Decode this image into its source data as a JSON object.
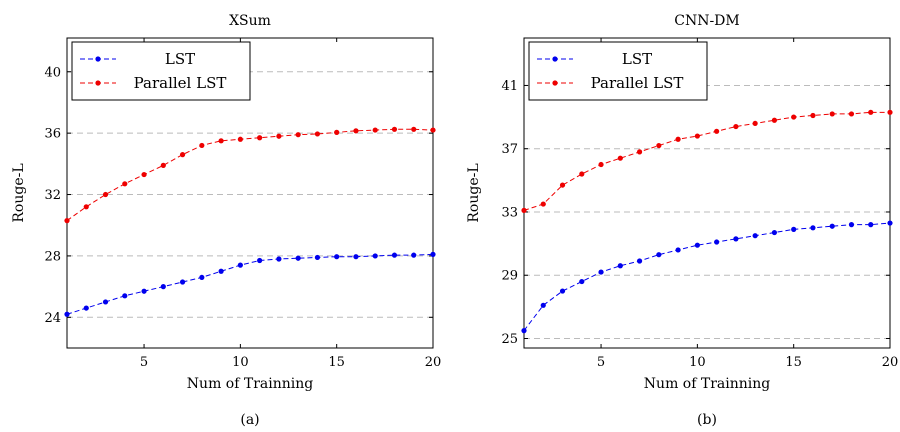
{
  "chart_data": [
    {
      "type": "line",
      "title": "XSum",
      "xlabel": "Num of Trainning",
      "ylabel": "Rouge-L",
      "caption": "(a)",
      "xlim": [
        1,
        20
      ],
      "ylim": [
        22,
        42.2
      ],
      "xticks": [
        5,
        10,
        15,
        20
      ],
      "yticks": [
        24,
        28,
        32,
        36,
        40
      ],
      "grid": "horizontal dashed",
      "legend_position": "top-left",
      "x": [
        1,
        2,
        3,
        4,
        5,
        6,
        7,
        8,
        9,
        10,
        11,
        12,
        13,
        14,
        15,
        16,
        17,
        18,
        19,
        20
      ],
      "series": [
        {
          "name": "LST",
          "color": "#0000ee",
          "values": [
            24.2,
            24.6,
            25.0,
            25.4,
            25.7,
            26.0,
            26.3,
            26.6,
            27.0,
            27.4,
            27.7,
            27.8,
            27.85,
            27.9,
            27.95,
            27.95,
            28.0,
            28.05,
            28.05,
            28.1
          ]
        },
        {
          "name": "Parallel LST",
          "color": "#ee0000",
          "values": [
            30.3,
            31.2,
            32.0,
            32.7,
            33.3,
            33.9,
            34.6,
            35.2,
            35.5,
            35.6,
            35.7,
            35.8,
            35.9,
            35.95,
            36.05,
            36.15,
            36.2,
            36.25,
            36.25,
            36.2
          ]
        }
      ]
    },
    {
      "type": "line",
      "title": "CNN-DM",
      "xlabel": "Num of Trainning",
      "ylabel": "Rouge-L",
      "caption": "(b)",
      "xlim": [
        1,
        20
      ],
      "ylim": [
        24.4,
        44
      ],
      "xticks": [
        5,
        10,
        15,
        20
      ],
      "yticks": [
        25,
        29,
        33,
        37,
        41
      ],
      "grid": "horizontal dashed",
      "legend_position": "top-left",
      "x": [
        1,
        2,
        3,
        4,
        5,
        6,
        7,
        8,
        9,
        10,
        11,
        12,
        13,
        14,
        15,
        16,
        17,
        18,
        19,
        20
      ],
      "series": [
        {
          "name": "LST",
          "color": "#0000ee",
          "values": [
            25.5,
            27.1,
            28.0,
            28.6,
            29.2,
            29.6,
            29.9,
            30.3,
            30.6,
            30.9,
            31.1,
            31.3,
            31.5,
            31.7,
            31.9,
            32.0,
            32.1,
            32.2,
            32.2,
            32.3
          ]
        },
        {
          "name": "Parallel LST",
          "color": "#ee0000",
          "values": [
            33.1,
            33.5,
            34.7,
            35.4,
            36.0,
            36.4,
            36.8,
            37.2,
            37.6,
            37.8,
            38.1,
            38.4,
            38.6,
            38.8,
            39.0,
            39.1,
            39.2,
            39.2,
            39.3,
            39.3
          ]
        }
      ]
    }
  ]
}
